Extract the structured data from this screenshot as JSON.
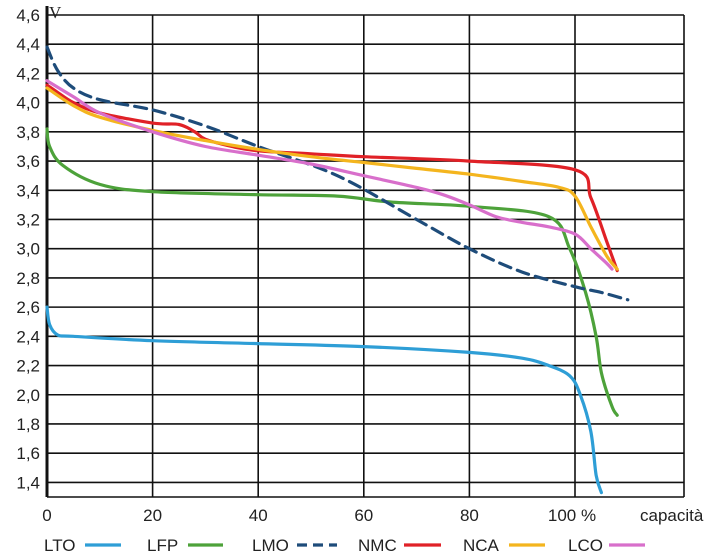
{
  "chart_data": {
    "type": "line",
    "ylabel": "V",
    "xlabel": "capacità",
    "xlim": [
      0,
      120
    ],
    "ylim": [
      1.3,
      4.6
    ],
    "x_ticks": [
      "0",
      "20",
      "40",
      "60",
      "80",
      "100 %"
    ],
    "x_tick_values": [
      0,
      20,
      40,
      60,
      80,
      100
    ],
    "y_ticks": [
      "4,6",
      "4,4",
      "4,2",
      "4,0",
      "3,8",
      "3,6",
      "3,4",
      "3,2",
      "3,0",
      "2,8",
      "2,6",
      "2,4",
      "2,2",
      "2,0",
      "1,8",
      "1,6",
      "1,4"
    ],
    "y_tick_values": [
      4.6,
      4.4,
      4.2,
      4.0,
      3.8,
      3.6,
      3.4,
      3.2,
      3.0,
      2.8,
      2.6,
      2.4,
      2.2,
      2.0,
      1.8,
      1.6,
      1.4
    ],
    "grid": true,
    "legend_position": "bottom",
    "series": [
      {
        "name": "LTO",
        "color": "#2e9ed6",
        "dash": false,
        "x": [
          0,
          0.5,
          2,
          5,
          20,
          40,
          60,
          80,
          90,
          95,
          99,
          101,
          103,
          104,
          105
        ],
        "y": [
          2.6,
          2.48,
          2.41,
          2.4,
          2.37,
          2.35,
          2.33,
          2.29,
          2.25,
          2.2,
          2.13,
          2.0,
          1.75,
          1.45,
          1.33
        ]
      },
      {
        "name": "LFP",
        "color": "#4da23a",
        "dash": false,
        "x": [
          0,
          0.5,
          3,
          10,
          20,
          40,
          55,
          65,
          80,
          95,
          99,
          102,
          104,
          105,
          107,
          108
        ],
        "y": [
          3.82,
          3.7,
          3.57,
          3.44,
          3.39,
          3.37,
          3.36,
          3.32,
          3.29,
          3.22,
          3.0,
          2.7,
          2.4,
          2.15,
          1.92,
          1.86
        ]
      },
      {
        "name": "LMO",
        "color": "#1e4c7a",
        "dash": true,
        "x": [
          0,
          2,
          5,
          10,
          20,
          30,
          40,
          55,
          70,
          80,
          90,
          100,
          105,
          110
        ],
        "y": [
          4.38,
          4.22,
          4.1,
          4.02,
          3.95,
          3.84,
          3.7,
          3.5,
          3.2,
          3.0,
          2.84,
          2.74,
          2.7,
          2.65
        ]
      },
      {
        "name": "NMC",
        "color": "#e02127",
        "dash": false,
        "x": [
          0,
          2,
          5,
          10,
          20,
          25,
          28,
          30,
          35,
          40,
          50,
          60,
          80,
          100,
          103,
          106,
          108
        ],
        "y": [
          4.12,
          4.07,
          4.0,
          3.93,
          3.86,
          3.85,
          3.8,
          3.75,
          3.7,
          3.67,
          3.65,
          3.63,
          3.6,
          3.54,
          3.35,
          3.05,
          2.85
        ]
      },
      {
        "name": "NCA",
        "color": "#f4b51e",
        "dash": false,
        "x": [
          0,
          5,
          10,
          20,
          30,
          40,
          50,
          60,
          70,
          80,
          90,
          97,
          100,
          103,
          106,
          108
        ],
        "y": [
          4.1,
          3.98,
          3.9,
          3.81,
          3.74,
          3.68,
          3.63,
          3.59,
          3.55,
          3.51,
          3.46,
          3.42,
          3.36,
          3.15,
          2.95,
          2.86
        ]
      },
      {
        "name": "LCO",
        "color": "#d86fcb",
        "dash": false,
        "x": [
          0,
          5,
          10,
          20,
          30,
          40,
          50,
          60,
          70,
          75,
          80,
          85,
          90,
          95,
          100,
          103,
          106,
          107
        ],
        "y": [
          4.15,
          4.04,
          3.93,
          3.8,
          3.7,
          3.64,
          3.58,
          3.5,
          3.42,
          3.37,
          3.3,
          3.22,
          3.18,
          3.15,
          3.1,
          3.0,
          2.9,
          2.86
        ]
      }
    ]
  }
}
